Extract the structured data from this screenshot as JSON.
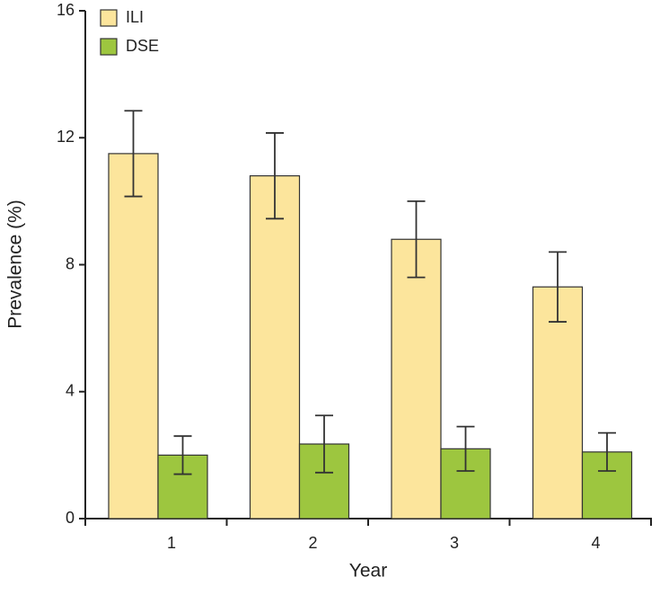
{
  "chart_data": {
    "type": "bar",
    "x_label": "Year",
    "y_label": "Prevalence (%)",
    "categories": [
      "1",
      "2",
      "3",
      "4"
    ],
    "series": [
      {
        "name": "ILI",
        "color": "#fce59c",
        "values": [
          11.5,
          10.8,
          8.8,
          7.3
        ],
        "errors": [
          1.35,
          1.35,
          1.2,
          1.1
        ]
      },
      {
        "name": "DSE",
        "color": "#9dc63f",
        "values": [
          2.0,
          2.35,
          2.2,
          2.1
        ],
        "errors": [
          0.6,
          0.9,
          0.7,
          0.6
        ]
      }
    ],
    "ylim": [
      0,
      16
    ],
    "yticks": [
      0,
      4,
      8,
      12,
      16
    ]
  }
}
